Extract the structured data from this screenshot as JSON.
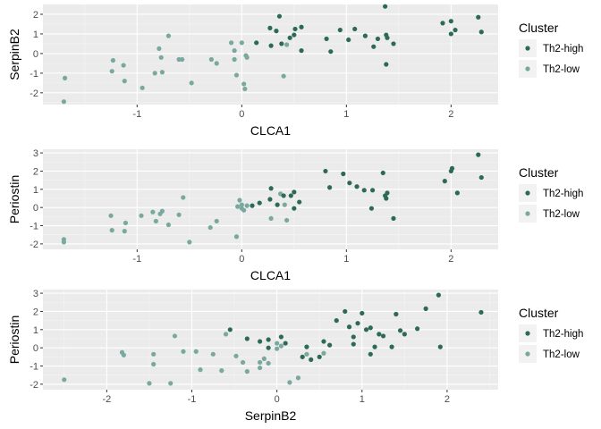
{
  "colors": {
    "Th2-high": "#2d6a56",
    "Th2-low": "#79a89e"
  },
  "legend": {
    "title": "Cluster",
    "items": [
      "Th2-high",
      "Th2-low"
    ]
  },
  "chart_data": [
    {
      "type": "scatter",
      "xlabel": "CLCA1",
      "ylabel": "SerpinB2",
      "xlim": [
        -1.9,
        2.45
      ],
      "ylim": [
        -2.6,
        2.5
      ],
      "xticks": [
        -1,
        0,
        1,
        2
      ],
      "yticks": [
        -2,
        -1,
        0,
        1,
        2
      ],
      "grid": true,
      "legend_position": "right",
      "series": [
        {
          "name": "Th2-high",
          "points": [
            [
              0.36,
              1.9
            ],
            [
              0.27,
              1.3
            ],
            [
              0.33,
              1.15
            ],
            [
              0.51,
              1.25
            ],
            [
              0.57,
              1.35
            ],
            [
              0.46,
              0.8
            ],
            [
              0.5,
              0.95
            ],
            [
              0.28,
              0.4
            ],
            [
              0.38,
              0.5
            ],
            [
              0.57,
              0.15
            ],
            [
              0.14,
              0.55
            ],
            [
              0.94,
              1.2
            ],
            [
              1.08,
              1.25
            ],
            [
              1.18,
              0.9
            ],
            [
              1.02,
              0.7
            ],
            [
              0.81,
              0.75
            ],
            [
              0.85,
              0.1
            ],
            [
              1.3,
              0.75
            ],
            [
              1.37,
              2.4
            ],
            [
              1.38,
              0.95
            ],
            [
              1.39,
              0.8
            ],
            [
              1.26,
              0.35
            ],
            [
              1.45,
              0.5
            ],
            [
              1.38,
              -0.55
            ],
            [
              1.92,
              1.55
            ],
            [
              2.0,
              1.65
            ],
            [
              2.04,
              1.2
            ],
            [
              2.26,
              1.85
            ],
            [
              2.29,
              1.1
            ],
            [
              2.0,
              1.0
            ]
          ]
        },
        {
          "name": "Th2-low",
          "points": [
            [
              -1.69,
              -1.25
            ],
            [
              -1.7,
              -2.45
            ],
            [
              -1.23,
              -0.35
            ],
            [
              -1.24,
              -0.9
            ],
            [
              -1.13,
              -0.6
            ],
            [
              -1.12,
              -1.4
            ],
            [
              -0.95,
              -1.75
            ],
            [
              -0.83,
              -1.0
            ],
            [
              -0.79,
              0.25
            ],
            [
              -0.77,
              -0.2
            ],
            [
              -0.76,
              -0.95
            ],
            [
              -0.7,
              0.9
            ],
            [
              -0.6,
              -0.3
            ],
            [
              -0.57,
              -0.3
            ],
            [
              -0.48,
              -1.5
            ],
            [
              -0.29,
              -0.3
            ],
            [
              -0.24,
              -0.5
            ],
            [
              -0.1,
              0.55
            ],
            [
              -0.07,
              0.15
            ],
            [
              -0.07,
              -0.3
            ],
            [
              -0.05,
              -1.1
            ],
            [
              0.0,
              0.55
            ],
            [
              0.02,
              -1.55
            ],
            [
              0.03,
              -1.8
            ],
            [
              0.04,
              -0.1
            ],
            [
              0.05,
              -0.2
            ],
            [
              0.43,
              0.45
            ],
            [
              0.4,
              -1.15
            ]
          ]
        }
      ]
    },
    {
      "type": "scatter",
      "xlabel": "CLCA1",
      "ylabel": "Periostin",
      "xlim": [
        -1.9,
        2.45
      ],
      "ylim": [
        -2.3,
        3.2
      ],
      "xticks": [
        -1,
        0,
        1,
        2
      ],
      "yticks": [
        -2,
        -1,
        0,
        1,
        2,
        3
      ],
      "grid": true,
      "legend_position": "right",
      "series": [
        {
          "name": "Th2-high",
          "points": [
            [
              0.17,
              0.25
            ],
            [
              0.1,
              0.1
            ],
            [
              0.27,
              0.45
            ],
            [
              0.28,
              1.05
            ],
            [
              0.34,
              0.15
            ],
            [
              0.4,
              0.65
            ],
            [
              0.47,
              0.65
            ],
            [
              0.5,
              0.85
            ],
            [
              0.5,
              -0.05
            ],
            [
              0.55,
              0.3
            ],
            [
              0.8,
              2.0
            ],
            [
              0.84,
              1.1
            ],
            [
              0.97,
              1.85
            ],
            [
              1.03,
              1.35
            ],
            [
              1.1,
              1.15
            ],
            [
              1.17,
              0.95
            ],
            [
              1.25,
              0.95
            ],
            [
              1.24,
              -0.05
            ],
            [
              1.35,
              1.9
            ],
            [
              1.37,
              0.65
            ],
            [
              1.39,
              0.8
            ],
            [
              1.38,
              0.5
            ],
            [
              1.45,
              -0.6
            ],
            [
              1.94,
              1.45
            ],
            [
              2.0,
              2.0
            ],
            [
              2.01,
              2.15
            ],
            [
              2.06,
              0.8
            ],
            [
              2.26,
              2.9
            ],
            [
              2.29,
              1.65
            ]
          ]
        },
        {
          "name": "Th2-low",
          "points": [
            [
              -1.7,
              -1.75
            ],
            [
              -1.7,
              -1.9
            ],
            [
              -1.25,
              -0.45
            ],
            [
              -1.24,
              -1.25
            ],
            [
              -1.11,
              -0.85
            ],
            [
              -1.12,
              -1.3
            ],
            [
              -0.96,
              -0.45
            ],
            [
              -0.85,
              -0.25
            ],
            [
              -0.82,
              -0.75
            ],
            [
              -0.78,
              -0.35
            ],
            [
              -0.76,
              -0.2
            ],
            [
              -0.7,
              -0.95
            ],
            [
              -0.6,
              -0.4
            ],
            [
              -0.56,
              0.55
            ],
            [
              -0.5,
              -1.9
            ],
            [
              -0.3,
              -1.1
            ],
            [
              -0.24,
              -0.75
            ],
            [
              -0.05,
              -1.6
            ],
            [
              -0.04,
              0.05
            ],
            [
              -0.02,
              0.4
            ],
            [
              0.0,
              -0.05
            ],
            [
              0.0,
              0.15
            ],
            [
              0.02,
              -0.15
            ],
            [
              0.05,
              0.1
            ],
            [
              0.37,
              0.75
            ],
            [
              0.41,
              0.15
            ],
            [
              0.28,
              -0.6
            ],
            [
              0.43,
              -0.7
            ]
          ]
        }
      ]
    },
    {
      "type": "scatter",
      "xlabel": "SerpinB2",
      "ylabel": "Periostin",
      "xlim": [
        -2.75,
        2.6
      ],
      "ylim": [
        -2.3,
        3.2
      ],
      "xticks": [
        -2,
        -1,
        0,
        1,
        2
      ],
      "yticks": [
        -2,
        -1,
        0,
        1,
        2,
        3
      ],
      "grid": true,
      "legend_position": "right",
      "series": [
        {
          "name": "Th2-high",
          "points": [
            [
              -0.55,
              1.0
            ],
            [
              -0.35,
              0.5
            ],
            [
              -0.2,
              0.35
            ],
            [
              -0.1,
              0.45
            ],
            [
              -0.1,
              0.0
            ],
            [
              0.05,
              0.6
            ],
            [
              0.1,
              0.25
            ],
            [
              0.3,
              -0.5
            ],
            [
              0.35,
              0.05
            ],
            [
              0.4,
              -0.65
            ],
            [
              0.55,
              0.35
            ],
            [
              0.5,
              -0.5
            ],
            [
              0.62,
              0.15
            ],
            [
              0.7,
              1.5
            ],
            [
              0.8,
              2.0
            ],
            [
              0.85,
              1.15
            ],
            [
              0.9,
              0.6
            ],
            [
              0.9,
              0.2
            ],
            [
              0.95,
              1.35
            ],
            [
              1.0,
              1.9
            ],
            [
              1.05,
              1.0
            ],
            [
              1.1,
              1.1
            ],
            [
              1.15,
              0.05
            ],
            [
              1.2,
              0.75
            ],
            [
              1.25,
              0.65
            ],
            [
              1.35,
              0.05
            ],
            [
              1.45,
              0.95
            ],
            [
              1.5,
              0.75
            ],
            [
              1.65,
              1.05
            ],
            [
              1.75,
              2.15
            ],
            [
              1.9,
              2.9
            ],
            [
              1.92,
              0.05
            ],
            [
              2.4,
              1.95
            ],
            [
              1.4,
              1.85
            ],
            [
              1.1,
              -0.35
            ]
          ]
        },
        {
          "name": "Th2-low",
          "points": [
            [
              -2.5,
              -1.75
            ],
            [
              -1.82,
              -0.25
            ],
            [
              -1.8,
              -0.4
            ],
            [
              -1.5,
              -1.95
            ],
            [
              -1.45,
              -0.9
            ],
            [
              -1.45,
              -0.35
            ],
            [
              -1.25,
              -1.95
            ],
            [
              -1.2,
              0.65
            ],
            [
              -1.1,
              -0.2
            ],
            [
              -0.95,
              -0.2
            ],
            [
              -0.9,
              -1.2
            ],
            [
              -0.75,
              -0.35
            ],
            [
              -0.65,
              -1.25
            ],
            [
              -0.6,
              0.75
            ],
            [
              -0.48,
              -0.45
            ],
            [
              -0.4,
              -0.8
            ],
            [
              -0.35,
              -1.3
            ],
            [
              -0.2,
              -0.8
            ],
            [
              -0.2,
              -1.1
            ],
            [
              -0.15,
              -0.6
            ],
            [
              -0.1,
              -0.85
            ],
            [
              0.0,
              -0.05
            ],
            [
              0.0,
              0.25
            ],
            [
              0.05,
              0.1
            ],
            [
              0.15,
              -1.9
            ],
            [
              0.25,
              -1.65
            ],
            [
              0.35,
              -0.35
            ],
            [
              0.55,
              -0.3
            ]
          ]
        }
      ]
    }
  ]
}
